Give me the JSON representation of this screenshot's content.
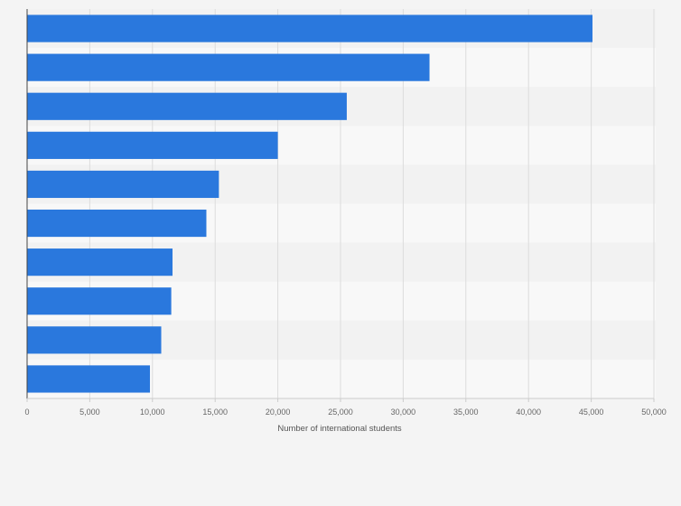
{
  "chart_data": {
    "type": "bar",
    "orientation": "horizontal",
    "title": "",
    "xlabel": "Number of international students",
    "ylabel": "",
    "categories": [
      "",
      "",
      "",
      "",
      "",
      "",
      "",
      "",
      "",
      ""
    ],
    "values": [
      45100,
      32100,
      25500,
      20000,
      15300,
      14300,
      11600,
      11500,
      10700,
      9800
    ],
    "xlim": [
      0,
      50000
    ],
    "x_ticks": [
      0,
      5000,
      10000,
      15000,
      20000,
      25000,
      30000,
      35000,
      40000,
      45000,
      50000
    ],
    "x_tick_labels": [
      "0",
      "5,000",
      "10,000",
      "15,000",
      "20,000",
      "25,000",
      "30,000",
      "35,000",
      "40,000",
      "45,000",
      "50,000"
    ],
    "grid": true,
    "legend": "none",
    "colors": {
      "bar": "#2a78dd",
      "band_dark": "#f2f2f2",
      "band_light": "#f8f8f8",
      "grid": "#dcdcdc",
      "axis": "#444444",
      "background": "#f4f4f4"
    }
  }
}
